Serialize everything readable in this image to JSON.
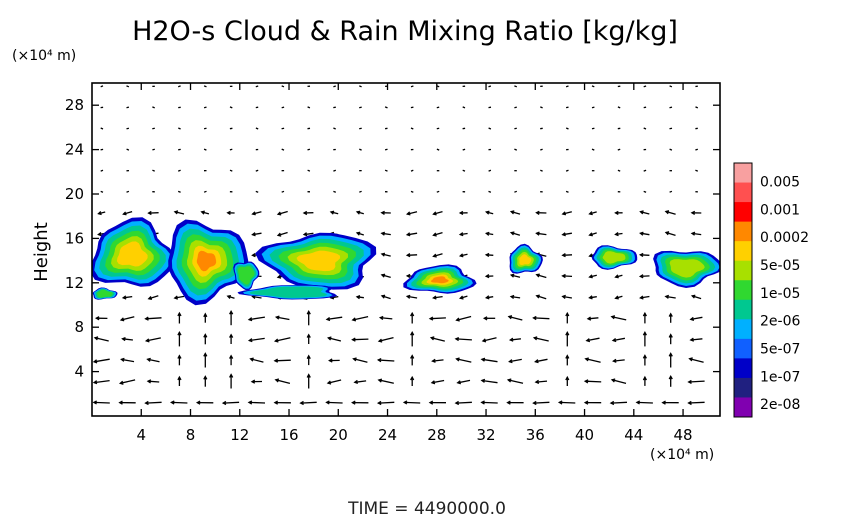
{
  "chart_data": {
    "type": "heatmap",
    "title": "H2O-s Cloud & Rain Mixing Ratio [kg/kg]",
    "xlabel": "",
    "ylabel": "Height",
    "x_unit": "(×10⁴ m)",
    "y_unit": "(×10⁴ m)",
    "xlim": [
      0,
      51
    ],
    "ylim": [
      0,
      30
    ],
    "x_ticks": [
      4,
      8,
      12,
      16,
      20,
      24,
      28,
      32,
      36,
      40,
      44,
      48
    ],
    "x_tick_labels": [
      "4",
      "8",
      "12",
      "16",
      "20",
      "24",
      "28",
      "32",
      "36",
      "40",
      "44",
      "48"
    ],
    "y_ticks": [
      4,
      8,
      12,
      16,
      20,
      24,
      28
    ],
    "y_tick_labels": [
      "4",
      "8",
      "12",
      "16",
      "20",
      "24",
      "28"
    ],
    "colorbar": {
      "levels": [
        "0.005",
        "0.001",
        "0.0002",
        "5e-05",
        "1e-05",
        "2e-06",
        "5e-07",
        "1e-07",
        "2e-08"
      ],
      "colors": [
        "#f8a0a0",
        "#ff5050",
        "#ff0000",
        "#ff8800",
        "#ffd000",
        "#a8e000",
        "#30d830",
        "#00c890",
        "#00b0ff",
        "#1060ff",
        "#0000c8",
        "#202080",
        "#8000b0"
      ]
    },
    "cloud_regions": [
      {
        "x": [
          0,
          6.5
        ],
        "y": [
          11.5,
          17.5
        ],
        "peak_level": "5e-05"
      },
      {
        "x": [
          0,
          2
        ],
        "y": [
          10.5,
          11.5
        ],
        "peak_level": "2e-06"
      },
      {
        "x": [
          6,
          12.5
        ],
        "y": [
          10.5,
          17.5
        ],
        "peak_level": "0.0002"
      },
      {
        "x": [
          11.5,
          13.5
        ],
        "y": [
          11.5,
          14
        ],
        "peak_level": "2e-06"
      },
      {
        "x": [
          14,
          23
        ],
        "y": [
          11.5,
          16.5
        ],
        "peak_level": "5e-05"
      },
      {
        "x": [
          12.5,
          20
        ],
        "y": [
          10.5,
          11.8
        ],
        "peak_level": "5e-07"
      },
      {
        "x": [
          25.5,
          31
        ],
        "y": [
          11,
          13.5
        ],
        "peak_level": "0.0002"
      },
      {
        "x": [
          33.8,
          36.5
        ],
        "y": [
          12.8,
          15.3
        ],
        "peak_level": "5e-05"
      },
      {
        "x": [
          40.5,
          44.2
        ],
        "y": [
          13.3,
          15.3
        ],
        "peak_level": "1e-05"
      },
      {
        "x": [
          45.5,
          51
        ],
        "y": [
          11.8,
          15
        ],
        "peak_level": "1e-05"
      }
    ],
    "wind_vectors": "quiver field over the domain; strongest arrows below height 8 (x10⁴ m), mostly vertical columns near x = 8, 10, 18, 26, 38, 46",
    "grid": false,
    "legend": "right (colorbar)"
  },
  "time_label": "TIME = 4490000.0"
}
